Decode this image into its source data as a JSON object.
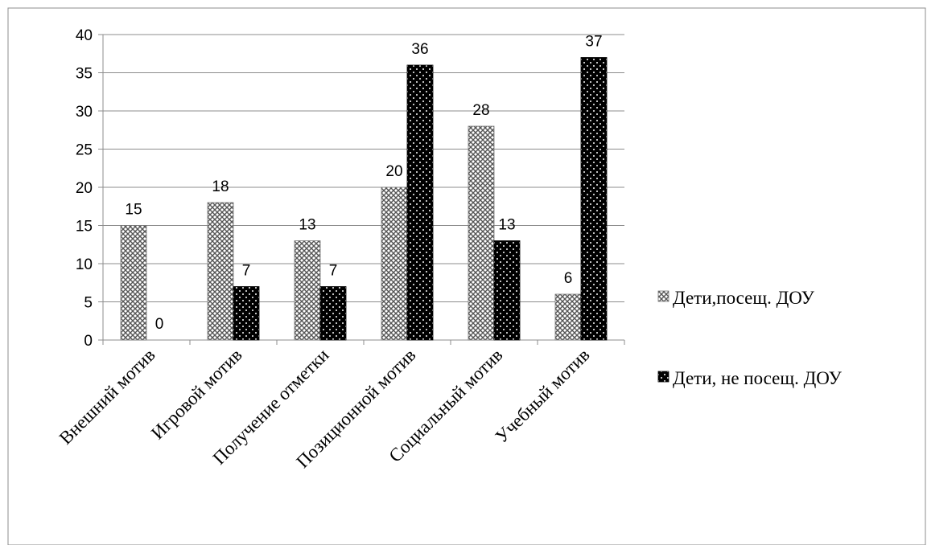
{
  "chart_data": {
    "type": "bar",
    "categories": [
      "Внешний мотив",
      "Игровой мотив",
      "Получение отметки",
      "Позиционной мотив",
      "Социальный мотив",
      "Учебный мотив"
    ],
    "series": [
      {
        "name": "Дети,посещ. ДОУ",
        "values": [
          15,
          18,
          13,
          20,
          28,
          6
        ],
        "pattern": "crosshatch"
      },
      {
        "name": "Дети, не посещ. ДОУ",
        "values": [
          0,
          7,
          7,
          36,
          13,
          37
        ],
        "pattern": "black-dotted"
      }
    ],
    "ylim": [
      0,
      40
    ],
    "yticks": [
      0,
      5,
      10,
      15,
      20,
      25,
      30,
      35,
      40
    ],
    "grid": true,
    "legend_position": "right",
    "data_labels": true
  }
}
